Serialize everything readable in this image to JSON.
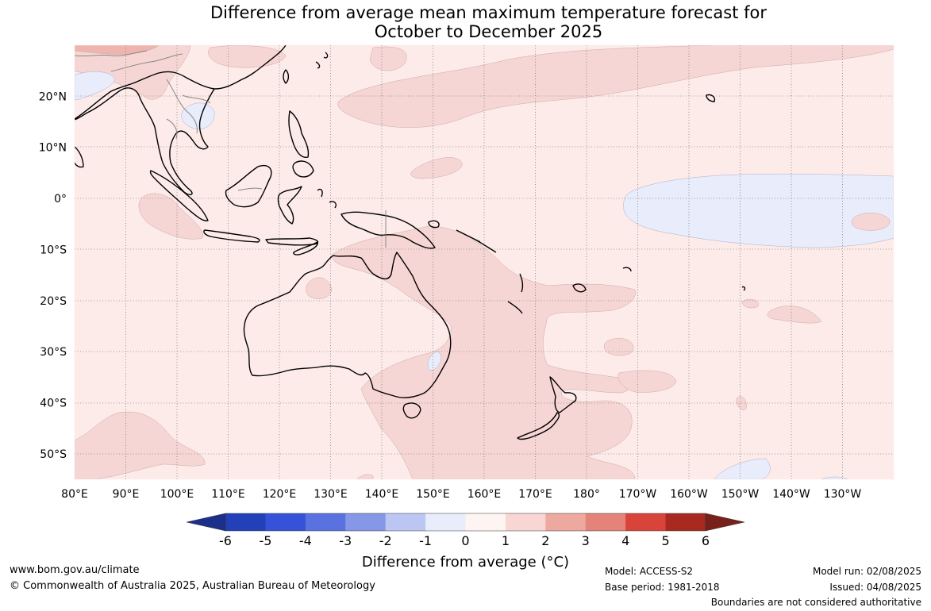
{
  "title": {
    "line1": "Difference from average mean maximum temperature forecast for",
    "line2": "October to December 2025"
  },
  "map": {
    "lon_labels": [
      "80°E",
      "90°E",
      "100°E",
      "110°E",
      "120°E",
      "130°E",
      "140°E",
      "150°E",
      "160°E",
      "170°E",
      "180°",
      "170°W",
      "160°W",
      "150°W",
      "140°W",
      "130°W"
    ],
    "lat_labels": [
      "20°N",
      "10°N",
      "0°",
      "10°S",
      "20°S",
      "30°S",
      "40°S",
      "50°S"
    ],
    "lon_range": [
      80,
      240
    ],
    "lat_range": [
      -55,
      30
    ],
    "grid": "dotted",
    "colors": {
      "ocean_base": "#fcebe9",
      "warm_1_2": "#f6d6d4",
      "warm_2_3": "#efb4ae",
      "cool_0_-1": "#e8ecfb",
      "coast": "#000000",
      "borders": "#888888"
    }
  },
  "colorbar": {
    "ticks": [
      "-6",
      "-5",
      "-4",
      "-3",
      "-2",
      "-1",
      "0",
      "1",
      "2",
      "3",
      "4",
      "5",
      "6"
    ],
    "colors": [
      "#1c2f8a",
      "#2240b8",
      "#3652d9",
      "#5a72e0",
      "#8597e6",
      "#bcc6f2",
      "#e8ecfb",
      "#fef4f2",
      "#f7d6d3",
      "#eda89f",
      "#e3837a",
      "#d8443a",
      "#a8291f",
      "#78201a"
    ],
    "label": "Difference from average (°C)"
  },
  "footer": {
    "website": "www.bom.gov.au/climate",
    "copyright": "© Commonwealth of Australia 2025, Australian Bureau of Meteorology",
    "model": "Model: ACCESS-S2",
    "base_period": "Base period: 1981-2018",
    "model_run": "Model run: 02/08/2025",
    "issued": "Issued: 04/08/2025",
    "disclaimer": "Boundaries are not considered authoritative"
  }
}
